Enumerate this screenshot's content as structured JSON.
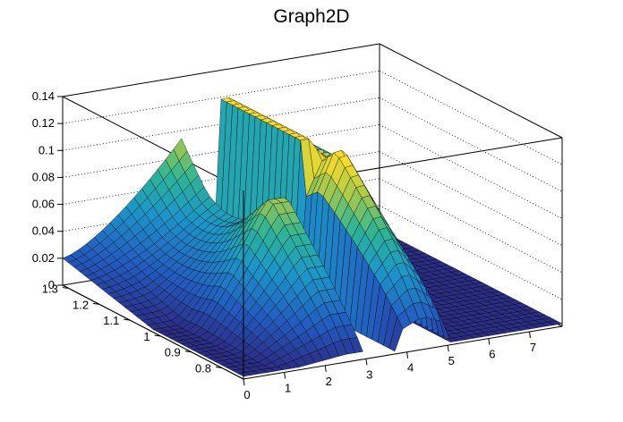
{
  "chart_data": {
    "type": "surface",
    "title": "Graph2D",
    "x_ticks": [
      "0",
      "1",
      "2",
      "3",
      "4",
      "5",
      "6",
      "7"
    ],
    "y_ticks": [
      "0.8",
      "0.9",
      "1",
      "1.1",
      "1.2",
      "1.3"
    ],
    "z_ticks": [
      "0",
      "0.02",
      "0.04",
      "0.06",
      "0.08",
      "0.1",
      "0.12",
      "0.14"
    ],
    "xlim": [
      0,
      7.8
    ],
    "ylim": [
      0.73,
      1.32
    ],
    "zlim": [
      0,
      0.14
    ],
    "grid": true,
    "colormap": "parula",
    "colors": {
      "low": "#2a3f8f",
      "mid": "#20a9b0",
      "high": "#f7e036",
      "mesh_line": "#000000",
      "grid_line": "#000000"
    }
  }
}
